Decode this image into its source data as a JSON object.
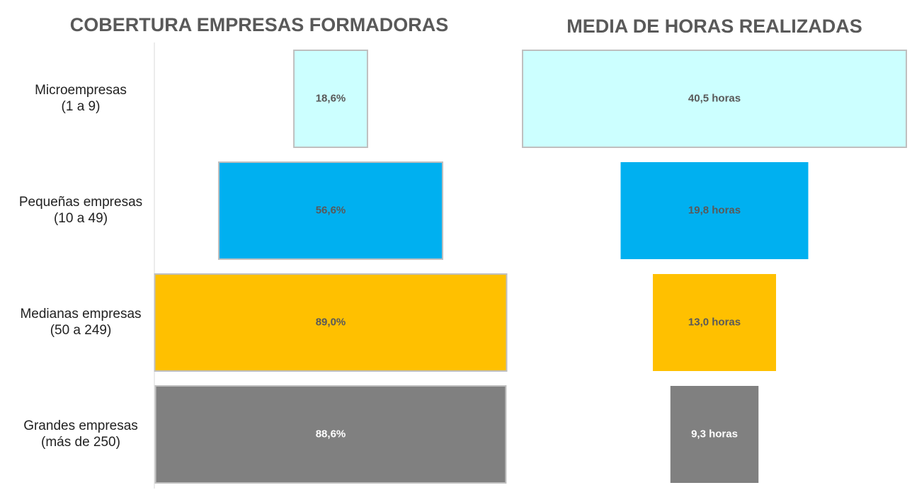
{
  "chart_data": [
    {
      "type": "funnel",
      "title": "COBERTURA EMPRESAS FORMADORAS",
      "categories": [
        "Microempresas\n(1 a 9)",
        "Pequeñas empresas\n(10 a 49)",
        "Medianas empresas\n(50 a 249)",
        "Grandes empresas\n(más de 250)"
      ],
      "values": [
        18.6,
        56.6,
        89.0,
        88.6
      ],
      "value_labels": [
        "18,6%",
        "56,6%",
        "89,0%",
        "88,6%"
      ],
      "colors": [
        "#ccffff",
        "#00b0f0",
        "#ffc000",
        "#808080"
      ]
    },
    {
      "type": "funnel",
      "title": "MEDIA DE HORAS REALIZADAS",
      "values": [
        40.5,
        19.8,
        13.0,
        9.3
      ],
      "value_labels": [
        "40,5 horas",
        "19,8 horas",
        "13,0 horas",
        "9,3 horas"
      ],
      "colors": [
        "#ccffff",
        "#00b0f0",
        "#ffc000",
        "#808080"
      ]
    }
  ]
}
